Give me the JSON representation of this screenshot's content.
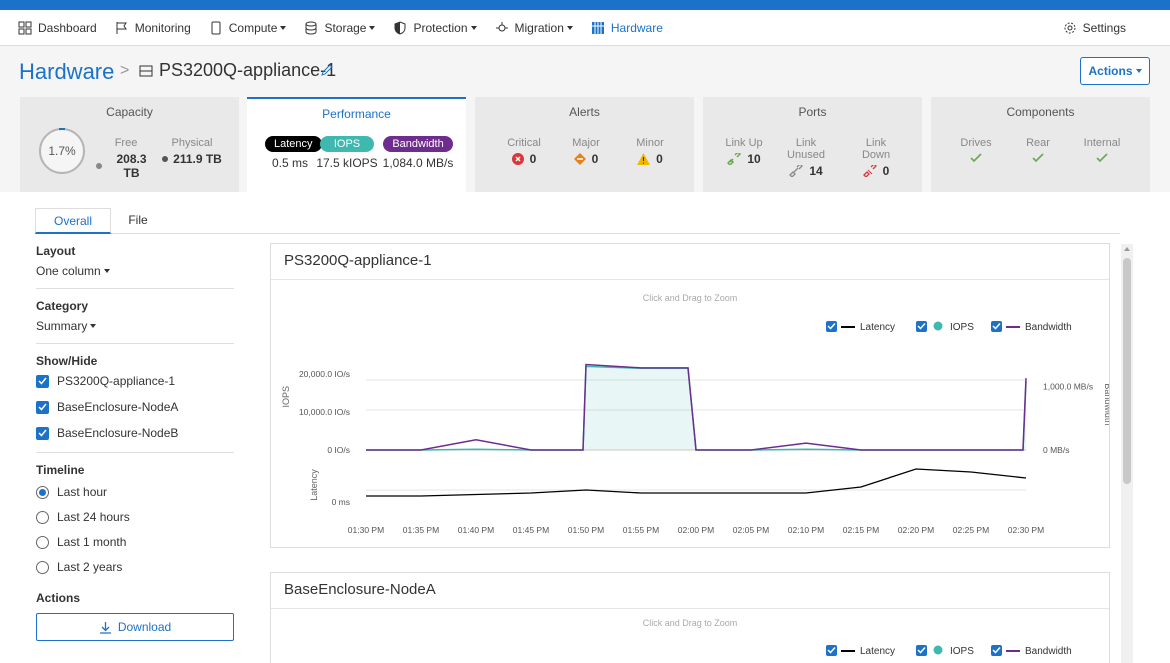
{
  "nav": {
    "items": [
      {
        "label": "Dashboard",
        "icon": "dashboard-icon"
      },
      {
        "label": "Monitoring",
        "icon": "flag-icon"
      },
      {
        "label": "Compute",
        "icon": "compute-icon",
        "dropdown": true
      },
      {
        "label": "Storage",
        "icon": "storage-icon",
        "dropdown": true
      },
      {
        "label": "Protection",
        "icon": "shield-icon",
        "dropdown": true
      },
      {
        "label": "Migration",
        "icon": "migration-icon",
        "dropdown": true
      },
      {
        "label": "Hardware",
        "icon": "hardware-icon",
        "active": true
      }
    ],
    "settings_label": "Settings"
  },
  "header": {
    "breadcrumb_root": "Hardware",
    "separator": ">",
    "device_name": "PS3200Q-appliance-1",
    "actions_label": "Actions"
  },
  "cards": {
    "capacity": {
      "title": "Capacity",
      "percent": "1.7%",
      "free_label": "Free",
      "free_value": "208.3 TB",
      "physical_label": "Physical",
      "physical_value": "211.9 TB"
    },
    "performance": {
      "title": "Performance",
      "latency_label": "Latency",
      "latency_value": "0.5 ms",
      "iops_label": "IOPS",
      "iops_value": "17.5 kIOPS",
      "bandwidth_label": "Bandwidth",
      "bandwidth_value": "1,084.0 MB/s"
    },
    "alerts": {
      "title": "Alerts",
      "critical_label": "Critical",
      "critical_value": "0",
      "major_label": "Major",
      "major_value": "0",
      "minor_label": "Minor",
      "minor_value": "0"
    },
    "ports": {
      "title": "Ports",
      "linkup_label": "Link Up",
      "linkup_value": "10",
      "linkunused_label": "Link Unused",
      "linkunused_value": "14",
      "linkdown_label": "Link Down",
      "linkdown_value": "0"
    },
    "components": {
      "title": "Components",
      "drives_label": "Drives",
      "rear_label": "Rear",
      "internal_label": "Internal"
    }
  },
  "tabs": {
    "overall": "Overall",
    "file": "File"
  },
  "sidebar": {
    "layout_label": "Layout",
    "layout_value": "One column",
    "category_label": "Category",
    "category_value": "Summary",
    "showhide_label": "Show/Hide",
    "showhide_items": [
      "PS3200Q-appliance-1",
      "BaseEnclosure-NodeA",
      "BaseEnclosure-NodeB"
    ],
    "timeline_label": "Timeline",
    "timeline_options": [
      "Last hour",
      "Last 24 hours",
      "Last 1 month",
      "Last 2 years"
    ],
    "timeline_selected": "Last hour",
    "actions_label": "Actions",
    "download_label": "Download"
  },
  "colors": {
    "accent": "#1b72c8",
    "iops": "#3fb8b0",
    "bandwidth": "#6e2c8f",
    "latency": "#000000",
    "critical": "#d9363e",
    "major": "#e8811a",
    "minor": "#f2b705",
    "ok": "#6aa84f"
  },
  "chart_data": [
    {
      "type": "line",
      "title": "PS3200Q-appliance-1",
      "zoom_hint": "Click and Drag to Zoom",
      "legend": [
        "Latency",
        "IOPS",
        "Bandwidth"
      ],
      "ylabel_left": "IOPS",
      "ylabel_right": "Bandwidth",
      "ylabel_latency": "Latency",
      "yticks_left": [
        "20,000.0 IO/s",
        "10,000.0 IO/s",
        "0 IO/s"
      ],
      "yticks_right": [
        "1,000.0 MB/s",
        "0 MB/s"
      ],
      "yticks_latency": [
        "0 ms"
      ],
      "x": [
        "01:30 PM",
        "01:35 PM",
        "01:40 PM",
        "01:45 PM",
        "01:50 PM",
        "01:55 PM",
        "02:00 PM",
        "02:05 PM",
        "02:10 PM",
        "02:15 PM",
        "02:20 PM",
        "02:25 PM",
        "02:30 PM"
      ],
      "ylim_iops": [
        0,
        25000
      ],
      "series": [
        {
          "name": "IOPS",
          "values": [
            0,
            0,
            200,
            0,
            22000,
            21500,
            0,
            0,
            200,
            0,
            0,
            0,
            18000
          ]
        },
        {
          "name": "Bandwidth",
          "values": [
            0,
            0,
            150,
            0,
            1250,
            1200,
            0,
            0,
            100,
            0,
            0,
            0,
            1050
          ]
        },
        {
          "name": "Latency",
          "values": [
            0.2,
            0.2,
            0.25,
            0.3,
            0.4,
            0.3,
            0.3,
            0.3,
            0.3,
            0.5,
            1.1,
            1.0,
            0.8
          ]
        }
      ]
    },
    {
      "type": "line",
      "title": "BaseEnclosure-NodeA",
      "zoom_hint": "Click and Drag to Zoom",
      "legend": [
        "Latency",
        "IOPS",
        "Bandwidth"
      ]
    }
  ]
}
